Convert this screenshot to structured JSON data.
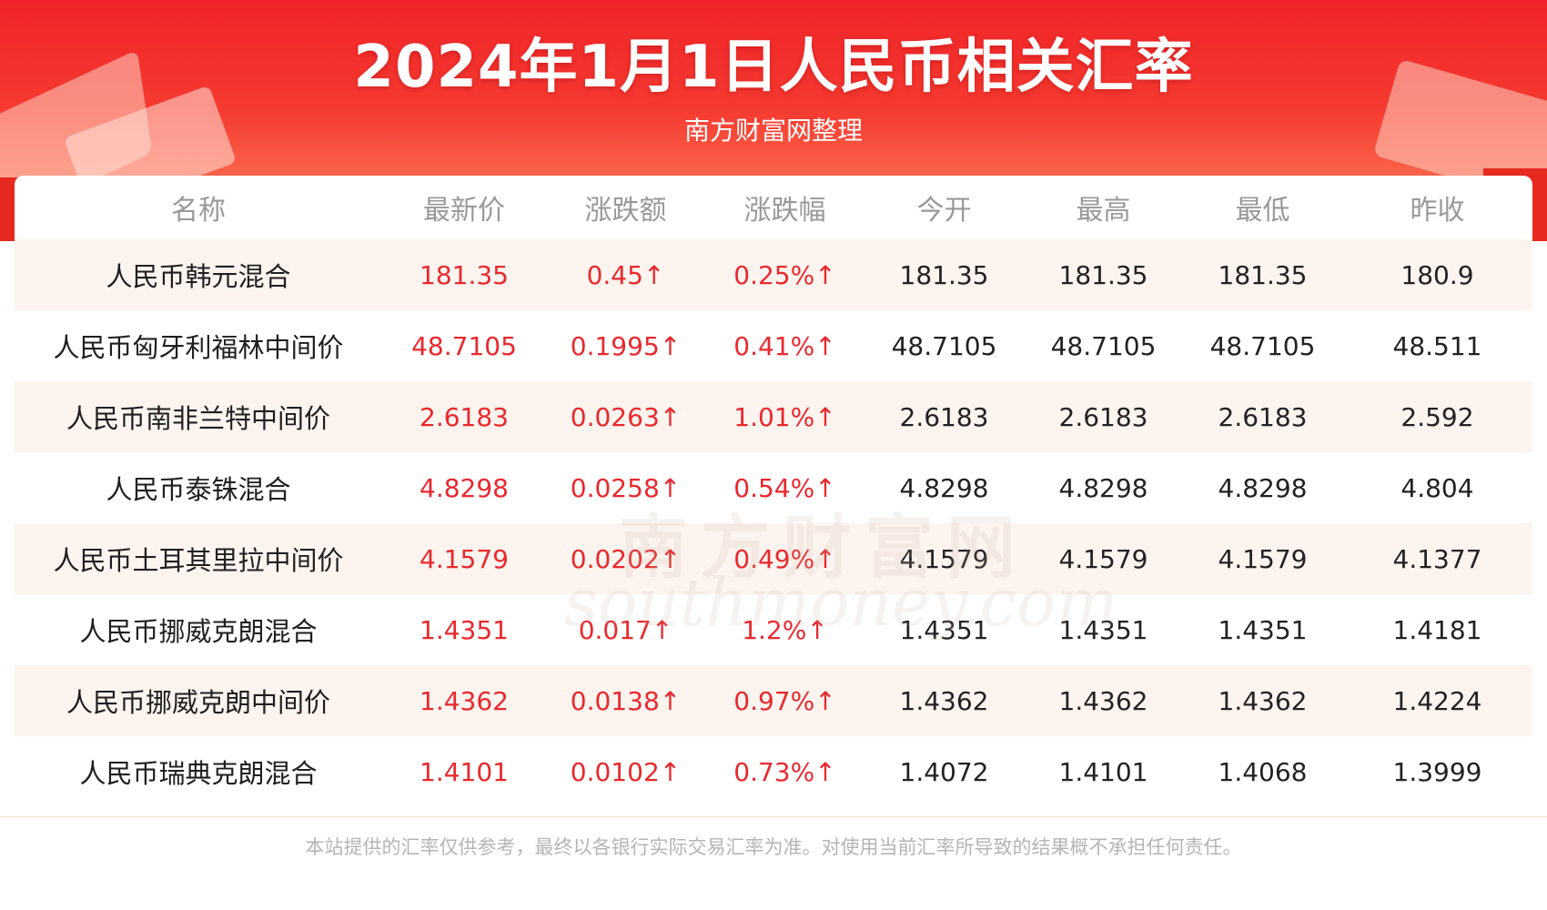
{
  "header": {
    "title": "2024年1月1日人民币相关汇率",
    "subtitle": "南方财富网整理"
  },
  "table": {
    "columns": [
      "名称",
      "最新价",
      "涨跌额",
      "涨跌幅",
      "今开",
      "最高",
      "最低",
      "昨收"
    ],
    "rows": [
      {
        "name": "人民币韩元混合",
        "latest": "181.35",
        "change": "0.45↑",
        "pct": "0.25%↑",
        "open": "181.35",
        "high": "181.35",
        "low": "181.35",
        "prev": "180.9"
      },
      {
        "name": "人民币匈牙利福林中间价",
        "latest": "48.7105",
        "change": "0.1995↑",
        "pct": "0.41%↑",
        "open": "48.7105",
        "high": "48.7105",
        "low": "48.7105",
        "prev": "48.511"
      },
      {
        "name": "人民币南非兰特中间价",
        "latest": "2.6183",
        "change": "0.0263↑",
        "pct": "1.01%↑",
        "open": "2.6183",
        "high": "2.6183",
        "low": "2.6183",
        "prev": "2.592"
      },
      {
        "name": "人民币泰铢混合",
        "latest": "4.8298",
        "change": "0.0258↑",
        "pct": "0.54%↑",
        "open": "4.8298",
        "high": "4.8298",
        "low": "4.8298",
        "prev": "4.804"
      },
      {
        "name": "人民币土耳其里拉中间价",
        "latest": "4.1579",
        "change": "0.0202↑",
        "pct": "0.49%↑",
        "open": "4.1579",
        "high": "4.1579",
        "low": "4.1579",
        "prev": "4.1377"
      },
      {
        "name": "人民币挪威克朗混合",
        "latest": "1.4351",
        "change": "0.017↑",
        "pct": "1.2%↑",
        "open": "1.4351",
        "high": "1.4351",
        "low": "1.4351",
        "prev": "1.4181"
      },
      {
        "name": "人民币挪威克朗中间价",
        "latest": "1.4362",
        "change": "0.0138↑",
        "pct": "0.97%↑",
        "open": "1.4362",
        "high": "1.4362",
        "low": "1.4362",
        "prev": "1.4224"
      },
      {
        "name": "人民币瑞典克朗混合",
        "latest": "1.4101",
        "change": "0.0102↑",
        "pct": "0.73%↑",
        "open": "1.4072",
        "high": "1.4101",
        "low": "1.4068",
        "prev": "1.3999"
      }
    ]
  },
  "watermark": {
    "cn": "南方财富网",
    "en": "southmoney.com"
  },
  "footer": {
    "disclaimer": "本站提供的汇率仅供参考，最终以各银行实际交易汇率为准。对使用当前汇率所导致的结果概不承担任何责任。"
  },
  "colors": {
    "banner_red": "#f0242a",
    "up_red": "#e8292e",
    "stripe": "#fdf4ef",
    "header_text": "#999999"
  }
}
